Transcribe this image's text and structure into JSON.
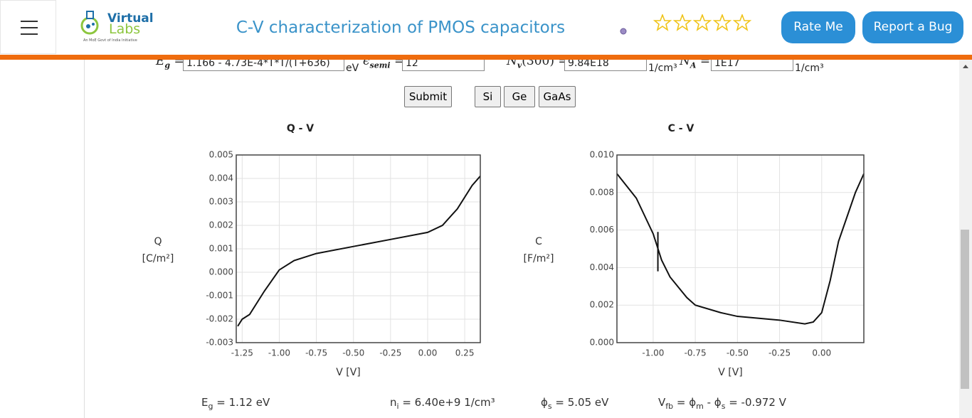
{
  "header": {
    "logo": {
      "name": "Virtual",
      "name2": "Labs",
      "tagline": "An MoE Govt of India Initiative"
    },
    "title": "C-V characterization of PMOS capacitors",
    "buttons": [
      "Rate Me",
      "Report a Bug"
    ]
  },
  "form": {
    "fields": [
      {
        "label": [
          "E",
          "g",
          " = "
        ],
        "value": "1.166 - 4.73E-4*T*T/(T+636)",
        "unit": "eV"
      },
      {
        "label": [
          "ϵ",
          "semi",
          " = "
        ],
        "value": "12"
      },
      {
        "label": [
          "N",
          "v",
          "(300) = "
        ],
        "value": "9.84E18",
        "unit": "1/cm³"
      },
      {
        "label": [
          "N",
          "A",
          " = "
        ],
        "value": "1E17",
        "unit": "1/cm³"
      }
    ],
    "buttons": [
      "Submit",
      "Si",
      "Ge",
      "GaAs"
    ]
  },
  "chart_data": [
    {
      "type": "line",
      "title": "Q - V",
      "ylabel": "Q",
      "yunit": "[C/m²]",
      "xlabel": "V [V]",
      "x": [
        -1.28,
        -1.25,
        -1.2,
        -1.1,
        -1.0,
        -0.9,
        -0.75,
        -0.5,
        -0.25,
        0.0,
        0.1,
        0.2,
        0.3,
        0.355
      ],
      "series": [
        {
          "color": "#111111",
          "values": [
            -0.0023,
            -0.002,
            -0.0018,
            -0.0008,
            0.0001,
            0.0005,
            0.0008,
            0.0011,
            0.0014,
            0.0017,
            0.002,
            0.0027,
            0.0037,
            0.0041
          ]
        }
      ],
      "xlim": [
        -1.29,
        0.355
      ],
      "ylim": [
        -0.003,
        0.005
      ],
      "xticks": [
        -1.25,
        {
          "value": -1,
          "label": "-1.00"
        },
        -0.75,
        {
          "value": -0.5,
          "label": "-0.50"
        },
        -0.25,
        {
          "value": 0,
          "label": "0.00"
        },
        0.25
      ],
      "yticks": [
        -0.003,
        -0.002,
        -0.001,
        {
          "value": 0,
          "label": "0.000"
        },
        0.001,
        0.002,
        0.003,
        0.004,
        0.005
      ],
      "grid": true
    },
    {
      "type": "line",
      "title": "C - V",
      "ylabel": "C",
      "yunit": "[F/m²]",
      "xlabel": "V [V]",
      "x": [
        -1.215,
        -1.1,
        -1.0,
        -0.95,
        -0.9,
        -0.8,
        -0.75,
        -0.6,
        -0.5,
        -0.25,
        -0.1,
        -0.05,
        0.0,
        0.05,
        0.1,
        0.15,
        0.2,
        0.25
      ],
      "series": [
        {
          "color": "#111111",
          "values": [
            0.009,
            0.0077,
            0.0058,
            0.0044,
            0.0035,
            0.0024,
            0.002,
            0.0016,
            0.0014,
            0.0012,
            0.001,
            0.0011,
            0.0016,
            0.0033,
            0.0054,
            0.0067,
            0.008,
            0.009
          ]
        }
      ],
      "marker": {
        "x": -0.972,
        "y": [
          0.0038,
          0.0059
        ]
      },
      "xlim": [
        -1.215,
        0.25
      ],
      "ylim": [
        0,
        0.01
      ],
      "xticks": [
        {
          "value": -1,
          "label": "-1.00"
        },
        -0.75,
        {
          "value": -0.5,
          "label": "-0.50"
        },
        -0.25,
        {
          "value": 0,
          "label": "0.00"
        }
      ],
      "yticks": [
        {
          "value": 0,
          "label": "0.000"
        },
        0.002,
        0.004,
        0.006,
        0.008,
        {
          "value": 0.01,
          "label": "0.010"
        }
      ],
      "grid": true
    }
  ],
  "results": [
    [
      "E",
      "g",
      " = 1.12 eV"
    ],
    [
      "n",
      "i",
      " = 6.40e+9 1/cm³"
    ],
    [
      "ϕ",
      "s",
      " = 5.05 eV"
    ],
    [
      "V",
      "fb",
      " = ϕ",
      "m",
      " - ϕ",
      "s",
      " = -0.972 V"
    ]
  ]
}
